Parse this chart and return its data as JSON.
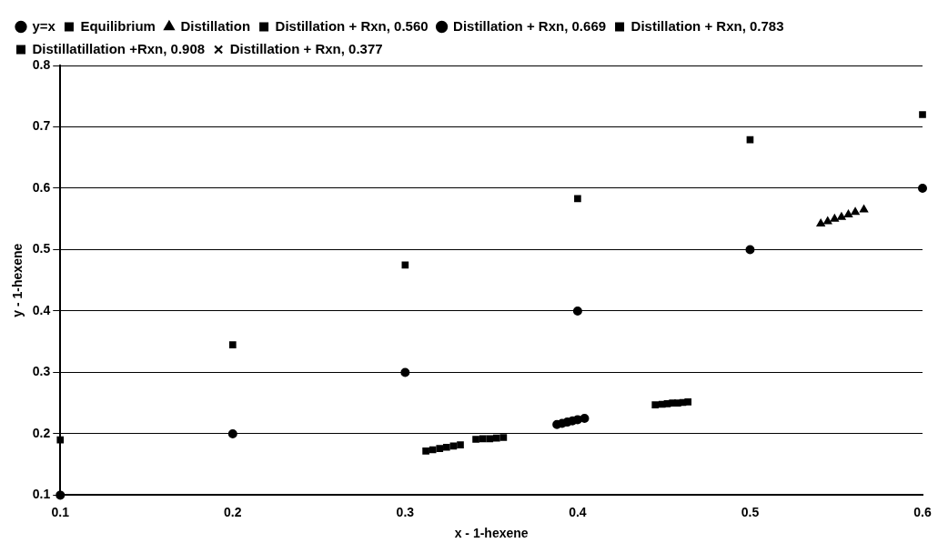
{
  "chart_data": {
    "type": "scatter",
    "xlabel": "x - 1-hexene",
    "ylabel": "y - 1-hexene",
    "xlim": [
      0.1,
      0.6
    ],
    "xticks": [
      0.1,
      0.2,
      0.3,
      0.4,
      0.5,
      0.6
    ],
    "ylim": [
      0.1,
      0.8
    ],
    "yticks": [
      0.1,
      0.2,
      0.3,
      0.4,
      0.5,
      0.6,
      0.7,
      0.8
    ],
    "grid": "y",
    "legend": "top left",
    "series": [
      {
        "name": "y=x",
        "color": "#000000",
        "marker": "circle",
        "x": [
          0.1,
          0.2,
          0.3,
          0.4,
          0.5,
          0.6
        ],
        "values": [
          0.1,
          0.2,
          0.3,
          0.4,
          0.5,
          0.6
        ]
      },
      {
        "name": "Equilibrium",
        "color": "#000000",
        "marker": "square",
        "x": [
          0.1,
          0.2,
          0.3,
          0.4,
          0.5,
          0.6
        ],
        "values": [
          0.19,
          0.345,
          0.475,
          0.583,
          0.679,
          0.72
        ]
      },
      {
        "name": "Distillation",
        "color": "#000000",
        "marker": "triangle",
        "x": [
          0.541,
          0.545,
          0.549,
          0.553,
          0.557,
          0.561,
          0.566
        ],
        "values": [
          0.542,
          0.546,
          0.55,
          0.553,
          0.557,
          0.561,
          0.565
        ]
      },
      {
        "name": "Distillation + Rxn, 0.560",
        "color": "#000000",
        "marker": "square",
        "x": [
          0.445,
          0.449,
          0.452,
          0.455,
          0.458,
          0.461,
          0.464
        ],
        "values": [
          0.247,
          0.248,
          0.249,
          0.25,
          0.25,
          0.251,
          0.252
        ]
      },
      {
        "name": "Distillation + Rxn, 0.669",
        "color": "#000000",
        "marker": "circle",
        "x": [
          0.388,
          0.391,
          0.394,
          0.397,
          0.4,
          0.404
        ],
        "values": [
          0.215,
          0.217,
          0.219,
          0.221,
          0.223,
          0.225
        ]
      },
      {
        "name": "Distillation + Rxn, 0.783",
        "color": "#000000",
        "marker": "square",
        "x": [
          0.341,
          0.345,
          0.349,
          0.353,
          0.357
        ],
        "values": [
          0.191,
          0.192,
          0.192,
          0.193,
          0.194
        ]
      },
      {
        "name": "Distillatillation +Rxn, 0.908",
        "color": "#000000",
        "marker": "square",
        "x": [
          0.312,
          0.316,
          0.32,
          0.324,
          0.328,
          0.332
        ],
        "values": [
          0.172,
          0.174,
          0.176,
          0.178,
          0.18,
          0.182
        ]
      },
      {
        "name": "Distillation + Rxn, 0.377",
        "color": "#000000",
        "marker": "cross"
      }
    ]
  }
}
